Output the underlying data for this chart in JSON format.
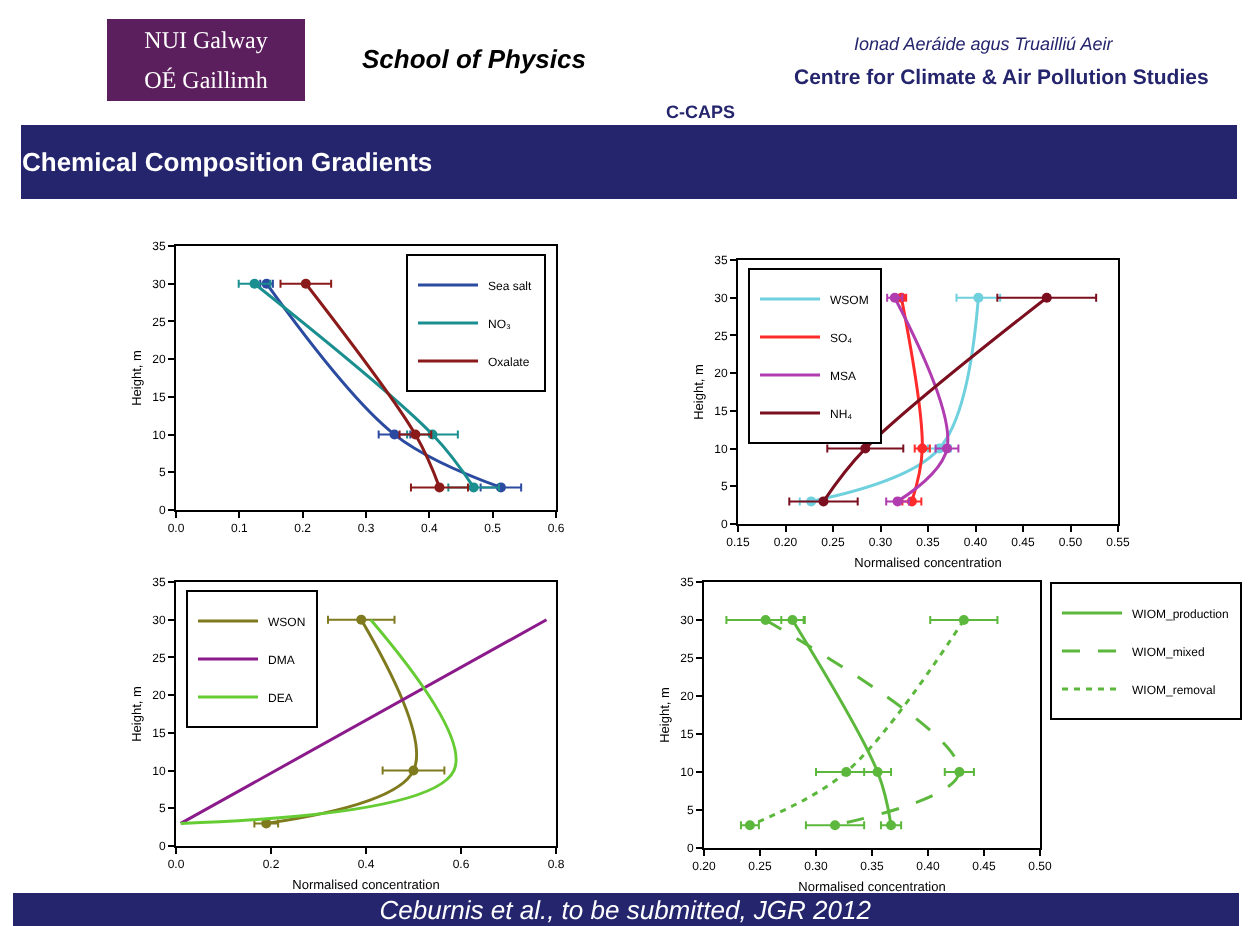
{
  "chart_data": [
    {
      "type": "other",
      "title": "Chemical Composition Gradients",
      "annotations": [
        "NUI Galway",
        "OÉ Gaillimh",
        "School of Physics",
        "Ionad Aeráide agus Truailliú Aeir",
        "Centre for Climate & Air Pollution Studies",
        "C-CAPS"
      ]
    },
    {
      "type": "line",
      "ylabel": "Height, m",
      "xlim": [
        0.0,
        0.6
      ],
      "xticks": [
        {
          "value": 0,
          "label": "0.0"
        },
        0.1,
        0.2,
        0.3,
        0.4,
        0.5,
        0.6
      ],
      "ylim": [
        0,
        35
      ],
      "yticks": [
        0,
        5,
        10,
        15,
        20,
        25,
        30,
        35
      ],
      "legend": "top right",
      "marker": "circle",
      "series": [
        {
          "name": "Sea salt",
          "color": "#2b4ba0",
          "x": [
            0.143,
            0.345,
            0.513
          ],
          "values": [
            30,
            10,
            3
          ],
          "xerrors": [
            0.01,
            0.025,
            0.032
          ]
        },
        {
          "name": "NO₃",
          "color": "#1b8f8f",
          "x": [
            0.124,
            0.405,
            0.47
          ],
          "values": [
            30,
            10,
            3
          ],
          "xerrors": [
            0.025,
            0.04,
            0.04
          ]
        },
        {
          "name": "Oxalate",
          "color": "#8b1a1a",
          "x": [
            0.205,
            0.378,
            0.416
          ],
          "values": [
            30,
            10,
            3
          ],
          "xerrors": [
            0.04,
            0.025,
            0.045
          ]
        }
      ]
    },
    {
      "type": "line",
      "xlabel": "Normalised concentration",
      "ylabel": "Height, m",
      "xlim": [
        0.15,
        0.55
      ],
      "xticks": [
        0.15,
        {
          "value": 0.2,
          "label": "0.20"
        },
        0.25,
        {
          "value": 0.3,
          "label": "0.30"
        },
        0.35,
        {
          "value": 0.4,
          "label": "0.40"
        },
        0.45,
        {
          "value": 0.5,
          "label": "0.50"
        },
        0.55
      ],
      "ylim": [
        0,
        35
      ],
      "yticks": [
        0,
        5,
        10,
        15,
        20,
        25,
        30,
        35
      ],
      "legend": "top left",
      "marker": "circle",
      "series": [
        {
          "name": "WSOM",
          "color": "#6fd0de",
          "x": [
            0.403,
            0.362,
            0.227
          ],
          "values": [
            30,
            10,
            3
          ],
          "xerrors": [
            0.023,
            0.012,
            0.012
          ]
        },
        {
          "name": "SO₄",
          "color": "#ff2a2a",
          "x": [
            0.322,
            0.344,
            0.333
          ],
          "values": [
            30,
            10,
            3
          ],
          "xerrors": [
            0.005,
            0.008,
            0.01
          ]
        },
        {
          "name": "MSA",
          "color": "#b03cb0",
          "x": [
            0.315,
            0.37,
            0.318
          ],
          "values": [
            30,
            10,
            3
          ],
          "xerrors": [
            0.008,
            0.012,
            0.012
          ]
        },
        {
          "name": "NH₄",
          "color": "#7b0f1f",
          "x": [
            0.475,
            0.284,
            0.24
          ],
          "values": [
            30,
            10,
            3
          ],
          "xerrors": [
            0.052,
            0.04,
            0.036
          ]
        }
      ]
    },
    {
      "type": "line",
      "xlabel": "Normalised concentration",
      "ylabel": "Height, m",
      "xlim": [
        0.0,
        0.8
      ],
      "xticks": [
        {
          "value": 0,
          "label": "0.0"
        },
        0.2,
        0.4,
        0.6,
        0.8
      ],
      "ylim": [
        0,
        35
      ],
      "yticks": [
        0,
        5,
        10,
        15,
        20,
        25,
        30,
        35
      ],
      "legend": "top left",
      "marker": "circle",
      "series": [
        {
          "name": "WSON",
          "color": "#7f7a1e",
          "x": [
            0.39,
            0.5,
            0.19
          ],
          "values": [
            30,
            10,
            3
          ],
          "xerrors": [
            0.07,
            0.065,
            0.025
          ]
        },
        {
          "name": "DMA",
          "color": "#8b1a8b",
          "marker": "none",
          "x": [
            0.78,
            0.01
          ],
          "values": [
            30,
            3
          ]
        },
        {
          "name": "DEA",
          "color": "#66cc33",
          "marker": "none",
          "x": [
            0.41,
            0.585,
            0.01
          ],
          "values": [
            30,
            10,
            3
          ]
        }
      ]
    },
    {
      "type": "line",
      "xlabel": "Normalised concentration",
      "ylabel": "Height, m",
      "xlim": [
        0.2,
        0.5
      ],
      "xticks": [
        {
          "value": 0.2,
          "label": "0.20"
        },
        0.25,
        {
          "value": 0.3,
          "label": "0.30"
        },
        0.35,
        {
          "value": 0.4,
          "label": "0.40"
        },
        0.45,
        {
          "value": 0.5,
          "label": "0.50"
        }
      ],
      "ylim": [
        0,
        35
      ],
      "yticks": [
        0,
        5,
        10,
        15,
        20,
        25,
        30,
        35
      ],
      "legend": "right",
      "marker": "circle",
      "series": [
        {
          "name": "WIOM_production",
          "color": "#5cb83c",
          "line_style": "solid",
          "x": [
            0.279,
            0.355,
            0.367
          ],
          "values": [
            30,
            10,
            3
          ],
          "xerrors": [
            0.01,
            0.012,
            0.009
          ]
        },
        {
          "name": "WIOM_mixed",
          "color": "#5cb83c",
          "line_style": "dashed",
          "x": [
            0.255,
            0.428,
            0.317
          ],
          "values": [
            30,
            10,
            3
          ],
          "xerrors": [
            0.035,
            0.013,
            0.026
          ]
        },
        {
          "name": "WIOM_removal",
          "color": "#5cb83c",
          "line_style": "dotted",
          "x": [
            0.432,
            0.327,
            0.241
          ],
          "values": [
            30,
            10,
            3
          ],
          "xerrors": [
            0.03,
            0.027,
            0.008
          ]
        }
      ]
    },
    {
      "type": "other",
      "annotations": [
        "Ceburnis et al., to be submitted, JGR 2012"
      ]
    }
  ]
}
